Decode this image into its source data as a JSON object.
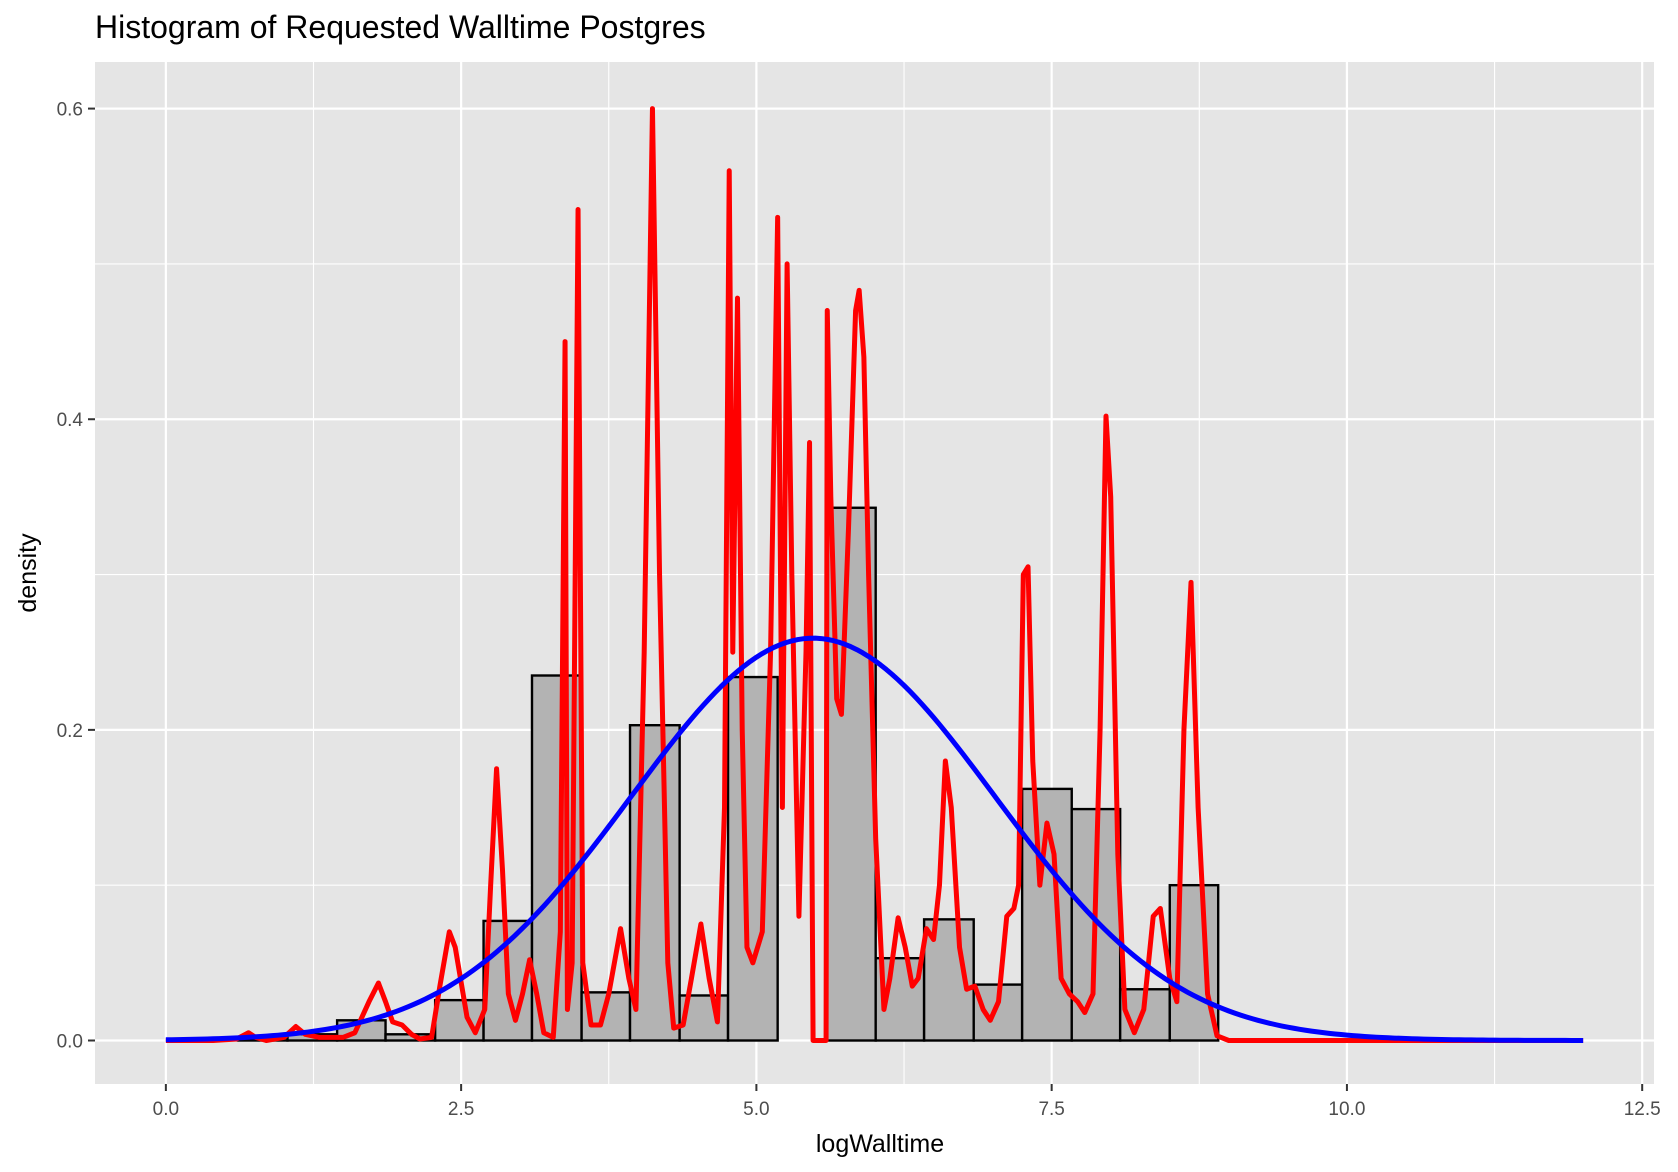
{
  "chart_data": {
    "type": "bar",
    "title": "Histogram of Requested Walltime Postgres",
    "xlabel": "logWalltime",
    "ylabel": "density",
    "xlim": [
      -0.6,
      12.6
    ],
    "ylim": [
      -0.028,
      0.63
    ],
    "x_ticks": [
      0.0,
      2.5,
      5.0,
      7.5,
      10.0,
      12.5
    ],
    "x_tick_labels": [
      "0.0",
      "2.5",
      "5.0",
      "7.5",
      "10.0",
      "12.5"
    ],
    "y_ticks": [
      0.0,
      0.2,
      0.4,
      0.6
    ],
    "y_tick_labels": [
      "0.0",
      "0.2",
      "0.4",
      "0.6"
    ],
    "grid": true,
    "background": "#e5e5e5",
    "histogram": {
      "fill": "#b3b3b3",
      "outline": "#000000",
      "bins": [
        {
          "x0": 0.61,
          "x1": 1.03,
          "y": 0.002
        },
        {
          "x0": 1.03,
          "x1": 1.45,
          "y": 0.004
        },
        {
          "x0": 1.45,
          "x1": 1.86,
          "y": 0.013
        },
        {
          "x0": 1.86,
          "x1": 2.28,
          "y": 0.004
        },
        {
          "x0": 2.28,
          "x1": 2.69,
          "y": 0.026
        },
        {
          "x0": 2.69,
          "x1": 3.1,
          "y": 0.077
        },
        {
          "x0": 3.1,
          "x1": 3.52,
          "y": 0.235
        },
        {
          "x0": 3.52,
          "x1": 3.93,
          "y": 0.031
        },
        {
          "x0": 3.93,
          "x1": 4.35,
          "y": 0.203
        },
        {
          "x0": 4.35,
          "x1": 4.76,
          "y": 0.029
        },
        {
          "x0": 4.76,
          "x1": 5.18,
          "y": 0.234
        },
        {
          "x0": 5.18,
          "x1": 5.59,
          "y": 0
        },
        {
          "x0": 5.59,
          "x1": 6.01,
          "y": 0.343
        },
        {
          "x0": 6.01,
          "x1": 6.42,
          "y": 0.053
        },
        {
          "x0": 6.42,
          "x1": 6.84,
          "y": 0.078
        },
        {
          "x0": 6.84,
          "x1": 7.25,
          "y": 0.036
        },
        {
          "x0": 7.25,
          "x1": 7.67,
          "y": 0.162
        },
        {
          "x0": 7.67,
          "x1": 8.08,
          "y": 0.149
        },
        {
          "x0": 8.08,
          "x1": 8.5,
          "y": 0.033
        },
        {
          "x0": 8.5,
          "x1": 8.91,
          "y": 0.1
        }
      ]
    },
    "series": [
      {
        "color": "#ff0000",
        "kind": "density",
        "points": [
          [
            0.0,
            0.0
          ],
          [
            0.4,
            0.0
          ],
          [
            0.6,
            0.001
          ],
          [
            0.7,
            0.005
          ],
          [
            0.76,
            0.002
          ],
          [
            0.85,
            0.0
          ],
          [
            1.0,
            0.002
          ],
          [
            1.1,
            0.009
          ],
          [
            1.18,
            0.004
          ],
          [
            1.3,
            0.002
          ],
          [
            1.5,
            0.002
          ],
          [
            1.6,
            0.005
          ],
          [
            1.72,
            0.025
          ],
          [
            1.8,
            0.037
          ],
          [
            1.86,
            0.025
          ],
          [
            1.92,
            0.012
          ],
          [
            2.0,
            0.01
          ],
          [
            2.08,
            0.004
          ],
          [
            2.15,
            0.001
          ],
          [
            2.25,
            0.002
          ],
          [
            2.32,
            0.035
          ],
          [
            2.4,
            0.07
          ],
          [
            2.45,
            0.06
          ],
          [
            2.55,
            0.015
          ],
          [
            2.62,
            0.005
          ],
          [
            2.7,
            0.02
          ],
          [
            2.75,
            0.1
          ],
          [
            2.8,
            0.175
          ],
          [
            2.85,
            0.11
          ],
          [
            2.9,
            0.03
          ],
          [
            2.96,
            0.013
          ],
          [
            3.02,
            0.03
          ],
          [
            3.08,
            0.052
          ],
          [
            3.14,
            0.03
          ],
          [
            3.2,
            0.005
          ],
          [
            3.28,
            0.002
          ],
          [
            3.34,
            0.07
          ],
          [
            3.38,
            0.45
          ],
          [
            3.4,
            0.02
          ],
          [
            3.44,
            0.05
          ],
          [
            3.49,
            0.535
          ],
          [
            3.53,
            0.05
          ],
          [
            3.6,
            0.01
          ],
          [
            3.68,
            0.01
          ],
          [
            3.75,
            0.03
          ],
          [
            3.85,
            0.072
          ],
          [
            3.92,
            0.04
          ],
          [
            3.98,
            0.02
          ],
          [
            4.05,
            0.25
          ],
          [
            4.12,
            0.6
          ],
          [
            4.18,
            0.3
          ],
          [
            4.25,
            0.05
          ],
          [
            4.3,
            0.008
          ],
          [
            4.38,
            0.01
          ],
          [
            4.45,
            0.04
          ],
          [
            4.53,
            0.075
          ],
          [
            4.6,
            0.04
          ],
          [
            4.67,
            0.012
          ],
          [
            4.73,
            0.15
          ],
          [
            4.77,
            0.56
          ],
          [
            4.8,
            0.25
          ],
          [
            4.84,
            0.478
          ],
          [
            4.88,
            0.2
          ],
          [
            4.92,
            0.06
          ],
          [
            4.97,
            0.05
          ],
          [
            5.05,
            0.07
          ],
          [
            5.12,
            0.25
          ],
          [
            5.18,
            0.53
          ],
          [
            5.22,
            0.15
          ],
          [
            5.26,
            0.5
          ],
          [
            5.3,
            0.3
          ],
          [
            5.36,
            0.08
          ],
          [
            5.42,
            0.25
          ],
          [
            5.45,
            0.385
          ],
          [
            5.48,
            0.0
          ],
          [
            5.59,
            0.0
          ],
          [
            5.6,
            0.47
          ],
          [
            5.63,
            0.35
          ],
          [
            5.68,
            0.22
          ],
          [
            5.72,
            0.21
          ],
          [
            5.78,
            0.33
          ],
          [
            5.84,
            0.47
          ],
          [
            5.87,
            0.483
          ],
          [
            5.91,
            0.44
          ],
          [
            5.95,
            0.3
          ],
          [
            6.01,
            0.13
          ],
          [
            6.08,
            0.02
          ],
          [
            6.13,
            0.04
          ],
          [
            6.2,
            0.079
          ],
          [
            6.26,
            0.06
          ],
          [
            6.32,
            0.035
          ],
          [
            6.37,
            0.04
          ],
          [
            6.44,
            0.072
          ],
          [
            6.5,
            0.065
          ],
          [
            6.55,
            0.1
          ],
          [
            6.6,
            0.18
          ],
          [
            6.65,
            0.15
          ],
          [
            6.72,
            0.06
          ],
          [
            6.78,
            0.033
          ],
          [
            6.85,
            0.035
          ],
          [
            6.92,
            0.02
          ],
          [
            6.98,
            0.013
          ],
          [
            7.05,
            0.025
          ],
          [
            7.12,
            0.08
          ],
          [
            7.18,
            0.085
          ],
          [
            7.22,
            0.1
          ],
          [
            7.26,
            0.3
          ],
          [
            7.3,
            0.305
          ],
          [
            7.34,
            0.18
          ],
          [
            7.4,
            0.1
          ],
          [
            7.46,
            0.14
          ],
          [
            7.52,
            0.12
          ],
          [
            7.58,
            0.04
          ],
          [
            7.65,
            0.03
          ],
          [
            7.72,
            0.025
          ],
          [
            7.78,
            0.018
          ],
          [
            7.85,
            0.03
          ],
          [
            7.91,
            0.2
          ],
          [
            7.96,
            0.402
          ],
          [
            8.0,
            0.35
          ],
          [
            8.06,
            0.12
          ],
          [
            8.12,
            0.02
          ],
          [
            8.2,
            0.005
          ],
          [
            8.28,
            0.02
          ],
          [
            8.36,
            0.08
          ],
          [
            8.42,
            0.085
          ],
          [
            8.5,
            0.04
          ],
          [
            8.56,
            0.025
          ],
          [
            8.62,
            0.2
          ],
          [
            8.68,
            0.295
          ],
          [
            8.74,
            0.15
          ],
          [
            8.82,
            0.03
          ],
          [
            8.9,
            0.003
          ],
          [
            9.0,
            0.0
          ],
          [
            12.0,
            0.0
          ]
        ]
      },
      {
        "color": "#0000ff",
        "kind": "normal",
        "mean": 5.48,
        "sd": 1.54,
        "x_range": [
          0.0,
          12.0
        ]
      }
    ]
  }
}
